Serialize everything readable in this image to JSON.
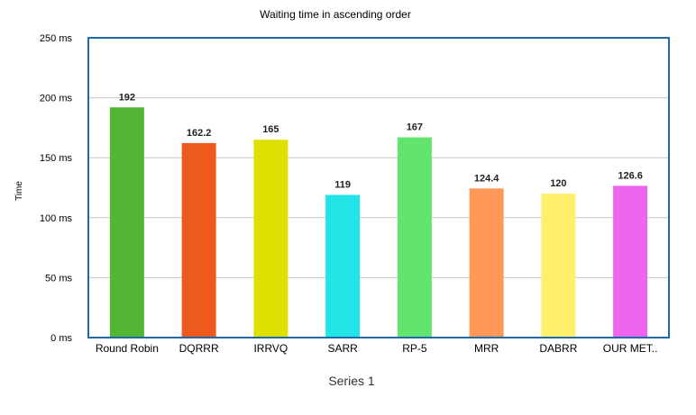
{
  "chart_data": {
    "type": "bar",
    "title": "Waiting time in ascending order",
    "ylabel": "Time",
    "xlabel": "Series 1",
    "y_unit": "ms",
    "ylim": [
      0,
      250
    ],
    "yticks": [
      0,
      50,
      100,
      150,
      200,
      250
    ],
    "grid": true,
    "legend": "none",
    "categories": [
      "Round Robin",
      "DQRRR",
      "IRRVQ",
      "SARR",
      "RP-5",
      "MRR",
      "DABRR",
      "OUR MET.."
    ],
    "values": [
      192,
      162.2,
      165,
      119,
      167,
      124.4,
      120,
      126.6
    ],
    "value_labels": [
      "192",
      "162.2",
      "165",
      "119",
      "167",
      "124.4",
      "120",
      "126.6"
    ],
    "colors": [
      "#52b634",
      "#ee5a1e",
      "#dde000",
      "#22e3e6",
      "#63e46f",
      "#ff9858",
      "#fef06a",
      "#ee66ee"
    ],
    "frame_color": "#1f6aa5",
    "grid_color": "#c8c8c8"
  }
}
